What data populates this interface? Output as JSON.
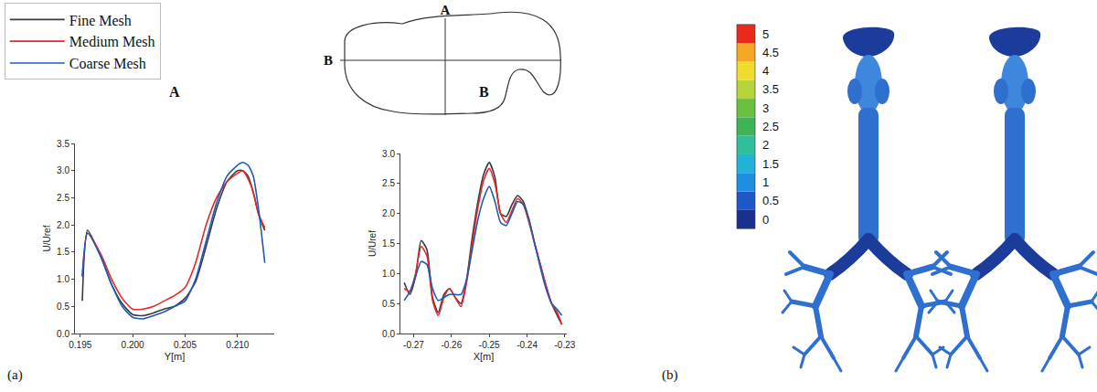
{
  "chart_data": [
    {
      "type": "line",
      "title": "A",
      "x_label": "Y[m]",
      "y_label": "U/Uref",
      "legend": "upper left",
      "grid": false,
      "x": [
        0.1952,
        0.1957,
        0.197,
        0.198,
        0.199,
        0.2,
        0.201,
        0.202,
        0.203,
        0.204,
        0.205,
        0.206,
        0.207,
        0.208,
        0.209,
        0.21,
        0.2105,
        0.211,
        0.2115,
        0.212,
        0.2126
      ],
      "series": [
        {
          "name": "Fine Mesh",
          "color": "#3a3a3a",
          "values": [
            0.6,
            1.9,
            1.4,
            0.9,
            0.55,
            0.35,
            0.33,
            0.38,
            0.45,
            0.5,
            0.65,
            0.95,
            1.6,
            2.3,
            2.8,
            3.0,
            3.0,
            2.9,
            2.6,
            2.2,
            1.9
          ]
        },
        {
          "name": "Medium Mesh",
          "color": "#e8272a",
          "values": [
            1.05,
            1.85,
            1.45,
            1.0,
            0.65,
            0.45,
            0.45,
            0.5,
            0.6,
            0.7,
            0.85,
            1.3,
            2.0,
            2.5,
            2.8,
            2.95,
            3.0,
            2.85,
            2.6,
            2.2,
            1.95
          ]
        },
        {
          "name": "Coarse Mesh",
          "color": "#1f5bb5",
          "values": [
            1.05,
            1.85,
            1.4,
            0.9,
            0.5,
            0.3,
            0.27,
            0.33,
            0.4,
            0.5,
            0.6,
            1.0,
            1.7,
            2.4,
            2.9,
            3.1,
            3.15,
            3.1,
            2.9,
            2.3,
            1.3
          ]
        }
      ],
      "xlim": [
        0.1945,
        0.2135
      ],
      "xticks": [
        0.195,
        {
          "value": 0.2,
          "label": "0.200"
        },
        0.205,
        {
          "value": 0.21,
          "label": "0.210"
        }
      ],
      "ylim": [
        0,
        3.5
      ],
      "yticks": [
        {
          "value": 0,
          "label": "0.0"
        },
        0.5,
        {
          "value": 1,
          "label": "1.0"
        },
        1.5,
        {
          "value": 2,
          "label": "2.0"
        },
        2.5,
        {
          "value": 3,
          "label": "3.0"
        },
        3.5
      ]
    },
    {
      "type": "line",
      "title": "B",
      "x_label": "X[m]",
      "y_label": "U/Uref",
      "grid": false,
      "x": [
        -0.2725,
        -0.271,
        -0.2695,
        -0.268,
        -0.2665,
        -0.265,
        -0.2635,
        -0.262,
        -0.2605,
        -0.259,
        -0.2575,
        -0.256,
        -0.2545,
        -0.253,
        -0.2515,
        -0.25,
        -0.2485,
        -0.247,
        -0.2455,
        -0.244,
        -0.2425,
        -0.241,
        -0.2395,
        -0.238,
        -0.2365,
        -0.235,
        -0.2335,
        -0.232,
        -0.2308
      ],
      "series": [
        {
          "name": "Fine Mesh",
          "color": "#3a3a3a",
          "values": [
            0.85,
            0.65,
            0.95,
            1.55,
            1.4,
            0.6,
            0.35,
            0.65,
            0.75,
            0.6,
            0.5,
            0.9,
            1.6,
            2.2,
            2.65,
            2.85,
            2.6,
            2.0,
            1.95,
            2.15,
            2.3,
            2.2,
            1.9,
            1.5,
            1.15,
            0.8,
            0.5,
            0.3,
            0.15
          ]
        },
        {
          "name": "Medium Mesh",
          "color": "#e8272a",
          "values": [
            0.75,
            0.7,
            1.0,
            1.45,
            1.3,
            0.55,
            0.3,
            0.6,
            0.75,
            0.6,
            0.45,
            0.85,
            1.5,
            2.1,
            2.55,
            2.75,
            2.5,
            2.0,
            1.85,
            2.05,
            2.25,
            2.15,
            1.85,
            1.5,
            1.15,
            0.8,
            0.5,
            0.35,
            0.15
          ]
        },
        {
          "name": "Coarse Mesh",
          "color": "#1f5bb5",
          "values": [
            0.55,
            0.7,
            0.95,
            1.2,
            1.15,
            0.75,
            0.55,
            0.6,
            0.65,
            0.65,
            0.65,
            0.9,
            1.4,
            1.9,
            2.25,
            2.45,
            2.2,
            1.85,
            1.8,
            2.0,
            2.2,
            2.15,
            1.9,
            1.5,
            1.1,
            0.75,
            0.5,
            0.4,
            0.3
          ]
        }
      ],
      "xlim": [
        -0.2735,
        -0.2295
      ],
      "xticks": [
        -0.27,
        -0.26,
        -0.25,
        -0.24,
        -0.23
      ],
      "ylim": [
        0,
        3.0
      ],
      "yticks": [
        {
          "value": 0,
          "label": "0.0"
        },
        0.5,
        {
          "value": 1,
          "label": "1.0"
        },
        1.5,
        {
          "value": 2,
          "label": "2.0"
        },
        2.5,
        {
          "value": 3,
          "label": "3.0"
        }
      ]
    }
  ],
  "panel_labels": [
    "(a)",
    "(b)"
  ],
  "diagram": {
    "vertical_line_label": "A",
    "horizontal_line_label": "B"
  },
  "colorbar": {
    "range": [
      0,
      5
    ],
    "ticks": [
      0,
      0.5,
      1,
      1.5,
      2,
      2.5,
      3,
      3.5,
      4,
      4.5,
      5
    ],
    "colors": [
      "#1b2f8f",
      "#1f57c8",
      "#1f8ee0",
      "#22b2d8",
      "#2fbf9c",
      "#3cb457",
      "#6cc040",
      "#b6d43a",
      "#f0dc2e",
      "#f5a623",
      "#e82a1c"
    ]
  }
}
